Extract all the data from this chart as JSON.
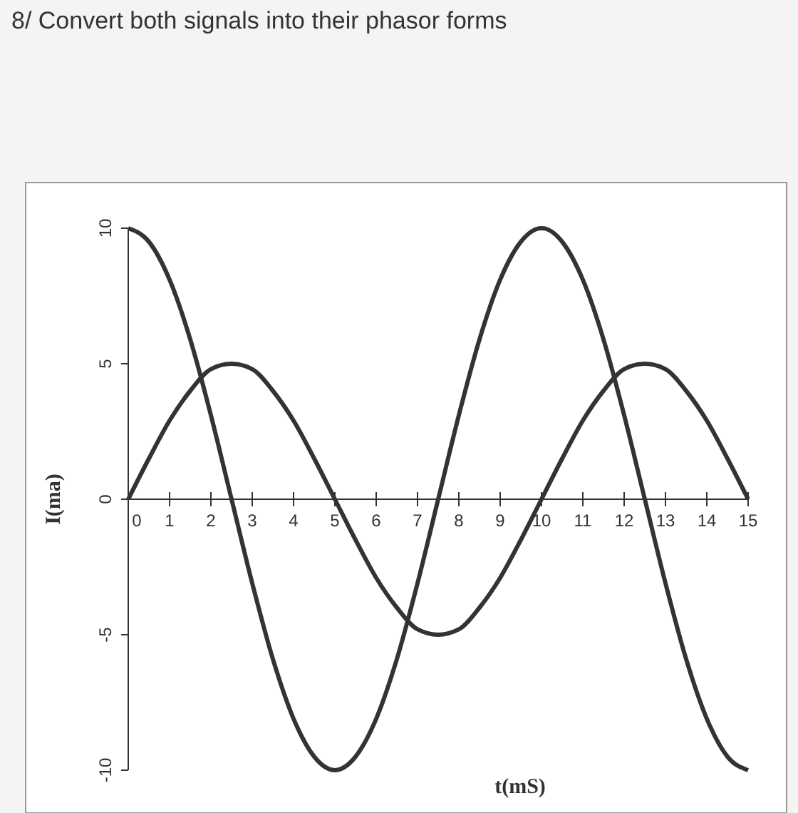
{
  "chart_data": {
    "type": "line",
    "title": "8/ Convert both signals into their phasor forms",
    "xlabel": "t(mS)",
    "ylabel": "I(ma)",
    "x": [
      0,
      0.5,
      1,
      1.5,
      2,
      2.5,
      3,
      3.5,
      4,
      4.5,
      5,
      5.5,
      6,
      6.5,
      7,
      7.5,
      8,
      8.5,
      9,
      9.5,
      10,
      10.5,
      11,
      11.5,
      12,
      12.5,
      13,
      13.5,
      14,
      14.5,
      15
    ],
    "series": [
      {
        "color": "#333333",
        "values": [
          10,
          9.5,
          8.1,
          5.9,
          3.1,
          0,
          -3.1,
          -5.9,
          -8.1,
          -9.5,
          -10,
          -9.5,
          -8.1,
          -5.9,
          -3.1,
          0,
          3.1,
          5.9,
          8.1,
          9.5,
          10,
          9.5,
          8.1,
          5.9,
          3.1,
          0,
          -3.1,
          -5.9,
          -8.1,
          -9.5,
          -10
        ]
      },
      {
        "color": "#333333",
        "values": [
          0,
          1.5,
          2.9,
          4,
          4.8,
          5,
          4.8,
          4,
          2.9,
          1.5,
          0,
          -1.5,
          -2.9,
          -4,
          -4.8,
          -5,
          -4.8,
          -4,
          -2.9,
          -1.5,
          0,
          1.5,
          2.9,
          4,
          4.8,
          5,
          4.8,
          4,
          2.9,
          1.5,
          0
        ]
      }
    ],
    "xlim": [
      0,
      15
    ],
    "xticks": [
      0,
      1,
      2,
      3,
      4,
      5,
      6,
      7,
      8,
      9,
      10,
      11,
      12,
      13,
      14,
      15
    ],
    "ylim": [
      -10,
      10
    ],
    "yticks": [
      -10,
      -5,
      0,
      5,
      10
    ],
    "marker": "none",
    "line_style": "solid"
  }
}
